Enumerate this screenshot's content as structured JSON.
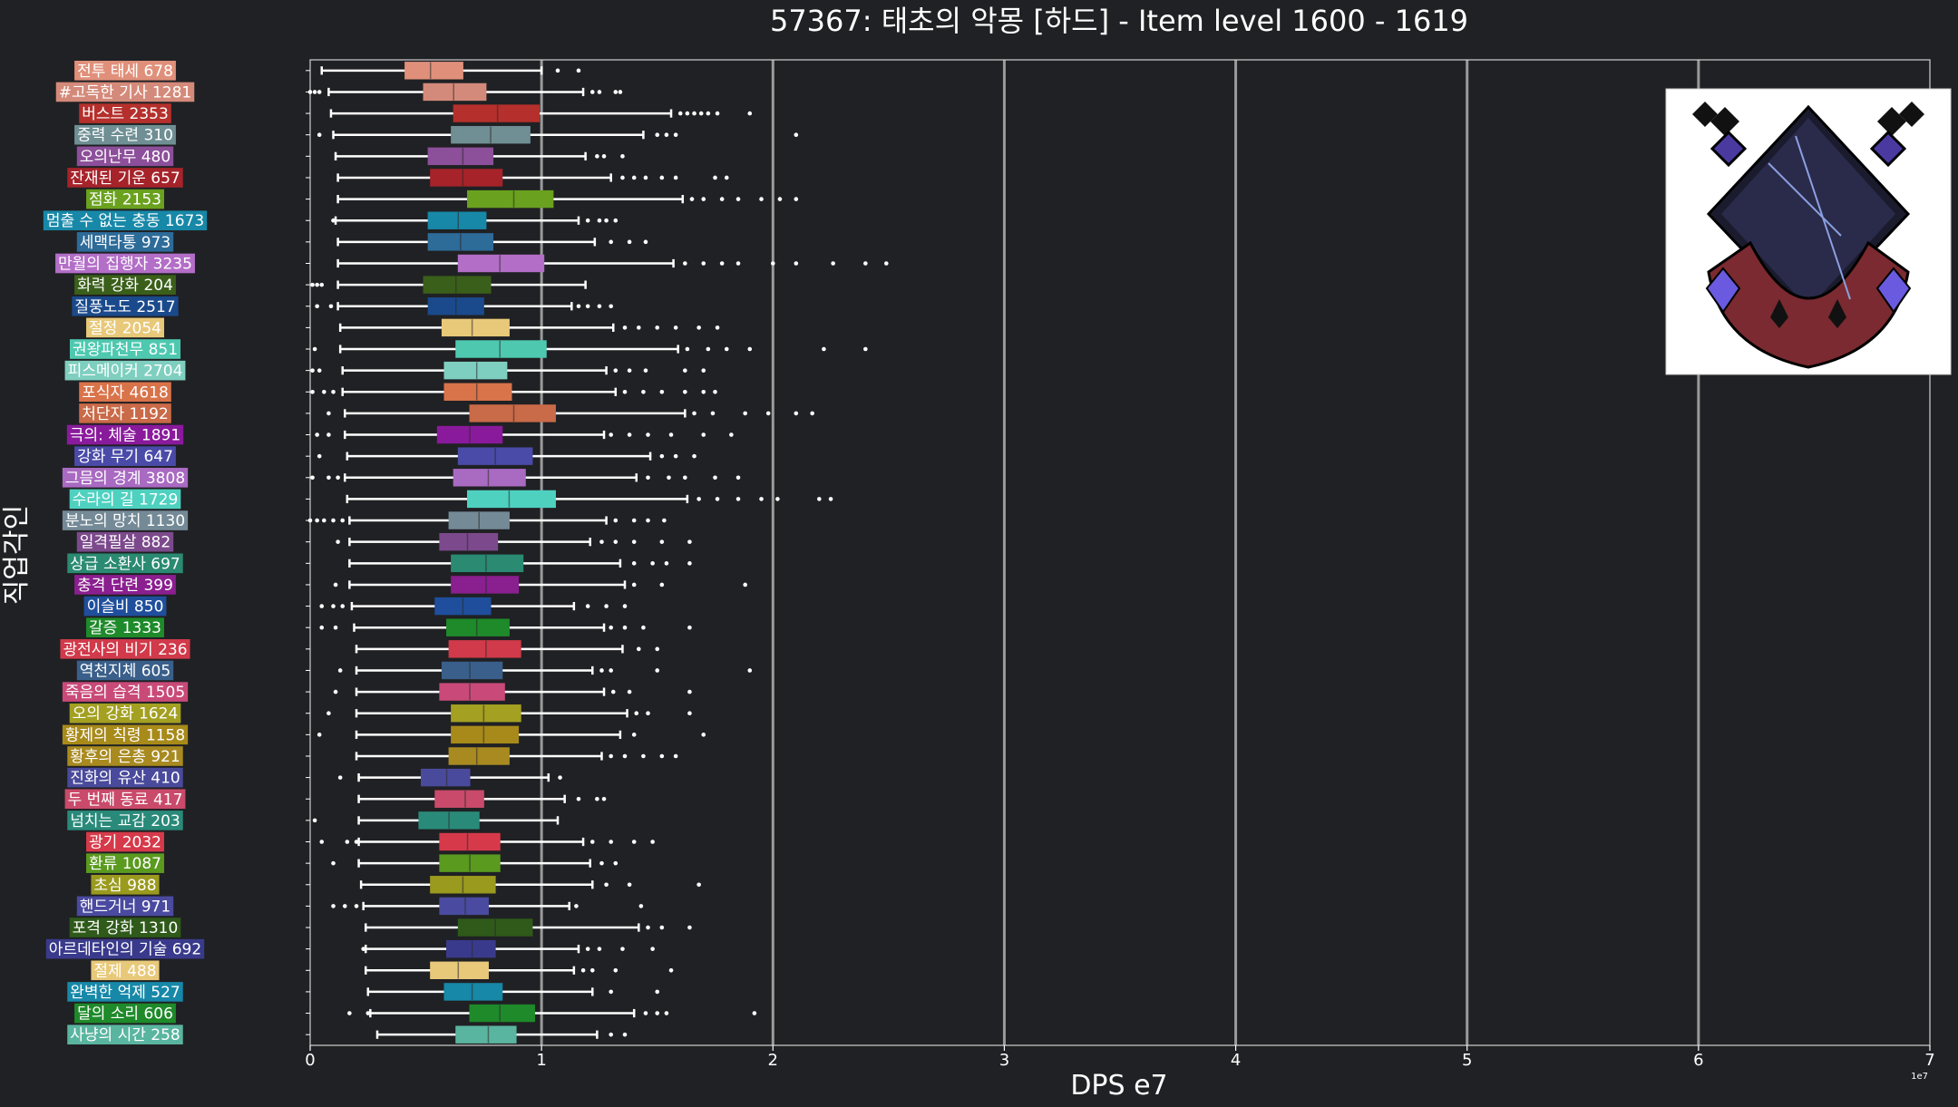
{
  "chart_data": {
    "type": "box",
    "title": "57367: 태초의 악몽 [하드] - Item level 1600 - 1619",
    "xlabel": "DPS e7",
    "ylabel": "직업각인",
    "x_offset_label": "1e7",
    "xlim": [
      0,
      7
    ],
    "xticks": [
      "0",
      "1",
      "2",
      "3",
      "4",
      "5",
      "6",
      "7"
    ],
    "grid": "vertical lines at major x ticks",
    "categories": [
      {
        "label": "전투 태세 678",
        "color": "#e0907a",
        "whisker_low": 0.05,
        "q1": 0.41,
        "median": 0.52,
        "q3": 0.66,
        "whisker_high": 1.0,
        "outliers": [
          1.07,
          1.16
        ]
      },
      {
        "label": "#고독한 기사 1281",
        "color": "#d48a7a",
        "whisker_low": 0.08,
        "q1": 0.49,
        "median": 0.62,
        "q3": 0.76,
        "whisker_high": 1.18,
        "outliers": [
          0.0,
          0.02,
          0.04,
          1.22,
          1.25,
          1.32,
          1.34
        ]
      },
      {
        "label": "버스트 2353",
        "color": "#b5302c",
        "whisker_low": 0.09,
        "q1": 0.62,
        "median": 0.81,
        "q3": 0.99,
        "whisker_high": 1.56,
        "outliers": [
          1.6,
          1.63,
          1.66,
          1.69,
          1.72,
          1.76,
          1.9
        ]
      },
      {
        "label": "중력 수련 310",
        "color": "#6f8f94",
        "whisker_low": 0.1,
        "q1": 0.61,
        "median": 0.78,
        "q3": 0.95,
        "whisker_high": 1.44,
        "outliers": [
          0.04,
          1.5,
          1.54,
          1.58,
          2.1
        ]
      },
      {
        "label": "오의난무 480",
        "color": "#8c4f9a",
        "whisker_low": 0.11,
        "q1": 0.51,
        "median": 0.66,
        "q3": 0.79,
        "whisker_high": 1.19,
        "outliers": [
          1.24,
          1.27,
          1.35
        ]
      },
      {
        "label": "잔재된 기운 657",
        "color": "#a6232a",
        "whisker_low": 0.12,
        "q1": 0.52,
        "median": 0.66,
        "q3": 0.83,
        "whisker_high": 1.3,
        "outliers": [
          1.35,
          1.4,
          1.45,
          1.52,
          1.58,
          1.75,
          1.8
        ]
      },
      {
        "label": "점화 2153",
        "color": "#6aa11f",
        "whisker_low": 0.12,
        "q1": 0.68,
        "median": 0.88,
        "q3": 1.05,
        "whisker_high": 1.61,
        "outliers": [
          1.65,
          1.7,
          1.78,
          1.85,
          1.95,
          2.03,
          2.1
        ]
      },
      {
        "label": "멈출 수 없는 충동 1673",
        "color": "#1788a8",
        "whisker_low": 0.11,
        "q1": 0.51,
        "median": 0.64,
        "q3": 0.76,
        "whisker_high": 1.16,
        "outliers": [
          0.1,
          1.2,
          1.25,
          1.28,
          1.32
        ]
      },
      {
        "label": "세맥타통 973",
        "color": "#2d6b99",
        "whisker_low": 0.12,
        "q1": 0.51,
        "median": 0.65,
        "q3": 0.79,
        "whisker_high": 1.23,
        "outliers": [
          1.3,
          1.38,
          1.45
        ]
      },
      {
        "label": "만월의 집행자 3235",
        "color": "#b36ec7",
        "whisker_low": 0.12,
        "q1": 0.64,
        "median": 0.82,
        "q3": 1.01,
        "whisker_high": 1.57,
        "outliers": [
          1.62,
          1.7,
          1.78,
          1.85,
          2.0,
          2.1,
          2.26,
          2.4,
          2.49
        ]
      },
      {
        "label": "화력 강화 204",
        "color": "#3a5f1a",
        "whisker_low": 0.12,
        "q1": 0.49,
        "median": 0.63,
        "q3": 0.78,
        "whisker_high": 1.19,
        "outliers": [
          0.01,
          0.03,
          0.05
        ]
      },
      {
        "label": "질풍노도 2517",
        "color": "#1a4a8c",
        "whisker_low": 0.12,
        "q1": 0.51,
        "median": 0.63,
        "q3": 0.75,
        "whisker_high": 1.13,
        "outliers": [
          0.03,
          0.09,
          1.16,
          1.2,
          1.25,
          1.3
        ]
      },
      {
        "label": "절정 2054",
        "color": "#e8c97a",
        "whisker_low": 0.13,
        "q1": 0.57,
        "median": 0.7,
        "q3": 0.86,
        "whisker_high": 1.31,
        "outliers": [
          1.36,
          1.42,
          1.5,
          1.58,
          1.68,
          1.76
        ]
      },
      {
        "label": "권왕파천무 851",
        "color": "#4ec9b0",
        "whisker_low": 0.13,
        "q1": 0.63,
        "median": 0.82,
        "q3": 1.02,
        "whisker_high": 1.59,
        "outliers": [
          0.02,
          1.63,
          1.72,
          1.8,
          1.9,
          2.22,
          2.4
        ]
      },
      {
        "label": "피스메이커 2704",
        "color": "#7fcfc0",
        "whisker_low": 0.14,
        "q1": 0.58,
        "median": 0.72,
        "q3": 0.85,
        "whisker_high": 1.28,
        "outliers": [
          0.01,
          0.04,
          1.32,
          1.38,
          1.45,
          1.62,
          1.7
        ]
      },
      {
        "label": "포식자 4618",
        "color": "#d9734a",
        "whisker_low": 0.14,
        "q1": 0.58,
        "median": 0.72,
        "q3": 0.87,
        "whisker_high": 1.32,
        "outliers": [
          0.01,
          0.06,
          0.1,
          1.36,
          1.44,
          1.52,
          1.62,
          1.7,
          1.75
        ]
      },
      {
        "label": "처단자 1192",
        "color": "#c96a48",
        "whisker_low": 0.15,
        "q1": 0.69,
        "median": 0.88,
        "q3": 1.06,
        "whisker_high": 1.62,
        "outliers": [
          0.08,
          1.66,
          1.74,
          1.88,
          1.98,
          2.1,
          2.17
        ]
      },
      {
        "label": "극의: 체술 1891",
        "color": "#8a1a9c",
        "whisker_low": 0.15,
        "q1": 0.55,
        "median": 0.69,
        "q3": 0.83,
        "whisker_high": 1.27,
        "outliers": [
          0.03,
          0.08,
          1.3,
          1.38,
          1.46,
          1.56,
          1.7,
          1.82
        ]
      },
      {
        "label": "강화 무기 647",
        "color": "#4a4aa8",
        "whisker_low": 0.16,
        "q1": 0.64,
        "median": 0.8,
        "q3": 0.96,
        "whisker_high": 1.47,
        "outliers": [
          0.04,
          1.52,
          1.58,
          1.66
        ]
      },
      {
        "label": "그믐의 경계 3808",
        "color": "#a96ac2",
        "whisker_low": 0.15,
        "q1": 0.62,
        "median": 0.77,
        "q3": 0.93,
        "whisker_high": 1.41,
        "outliers": [
          0.01,
          0.08,
          0.12,
          1.46,
          1.55,
          1.62,
          1.75,
          1.85
        ]
      },
      {
        "label": "수라의 길 1729",
        "color": "#4fd1c0",
        "whisker_low": 0.16,
        "q1": 0.68,
        "median": 0.86,
        "q3": 1.06,
        "whisker_high": 1.63,
        "outliers": [
          1.68,
          1.76,
          1.85,
          1.95,
          2.02,
          2.2,
          2.25
        ]
      },
      {
        "label": "분노의 망치 1130",
        "color": "#748a96",
        "whisker_low": 0.17,
        "q1": 0.6,
        "median": 0.73,
        "q3": 0.86,
        "whisker_high": 1.28,
        "outliers": [
          0.0,
          0.03,
          0.06,
          0.1,
          0.14,
          1.32,
          1.4,
          1.46,
          1.53
        ]
      },
      {
        "label": "일격필살 882",
        "color": "#7c4a8c",
        "whisker_low": 0.17,
        "q1": 0.56,
        "median": 0.68,
        "q3": 0.81,
        "whisker_high": 1.21,
        "outliers": [
          0.12,
          1.26,
          1.32,
          1.4,
          1.52,
          1.64
        ]
      },
      {
        "label": "상급 소환사 697",
        "color": "#2a8a72",
        "whisker_low": 0.17,
        "q1": 0.61,
        "median": 0.76,
        "q3": 0.92,
        "whisker_high": 1.34,
        "outliers": [
          1.4,
          1.48,
          1.54,
          1.64
        ]
      },
      {
        "label": "충격 단련 399",
        "color": "#8a1f8f",
        "whisker_low": 0.17,
        "q1": 0.61,
        "median": 0.76,
        "q3": 0.9,
        "whisker_high": 1.36,
        "outliers": [
          0.11,
          1.4,
          1.52,
          1.88
        ]
      },
      {
        "label": "이슬비 850",
        "color": "#1f4f9c",
        "whisker_low": 0.18,
        "q1": 0.54,
        "median": 0.66,
        "q3": 0.78,
        "whisker_high": 1.14,
        "outliers": [
          0.05,
          0.1,
          0.14,
          1.2,
          1.28,
          1.36
        ]
      },
      {
        "label": "갈증 1333",
        "color": "#1e8a2a",
        "whisker_low": 0.19,
        "q1": 0.59,
        "median": 0.72,
        "q3": 0.86,
        "whisker_high": 1.27,
        "outliers": [
          0.05,
          0.11,
          1.3,
          1.36,
          1.44,
          1.64
        ]
      },
      {
        "label": "광전사의 비기 236",
        "color": "#d13a4a",
        "whisker_low": 0.2,
        "q1": 0.6,
        "median": 0.76,
        "q3": 0.91,
        "whisker_high": 1.35,
        "outliers": [
          1.42,
          1.5
        ]
      },
      {
        "label": "역천지체 605",
        "color": "#3a5f8a",
        "whisker_low": 0.2,
        "q1": 0.57,
        "median": 0.69,
        "q3": 0.83,
        "whisker_high": 1.22,
        "outliers": [
          0.13,
          1.26,
          1.3,
          1.5,
          1.9
        ]
      },
      {
        "label": "죽음의 습격 1505",
        "color": "#c94a78",
        "whisker_low": 0.2,
        "q1": 0.56,
        "median": 0.69,
        "q3": 0.84,
        "whisker_high": 1.27,
        "outliers": [
          0.11,
          1.31,
          1.38,
          1.64
        ]
      },
      {
        "label": "오의 강화 1624",
        "color": "#a3a022",
        "whisker_low": 0.2,
        "q1": 0.61,
        "median": 0.75,
        "q3": 0.91,
        "whisker_high": 1.37,
        "outliers": [
          0.08,
          1.41,
          1.46,
          1.64
        ]
      },
      {
        "label": "황제의 칙령 1158",
        "color": "#a88a1a",
        "whisker_low": 0.2,
        "q1": 0.61,
        "median": 0.75,
        "q3": 0.9,
        "whisker_high": 1.34,
        "outliers": [
          0.04,
          1.4,
          1.7
        ]
      },
      {
        "label": "황후의 은총 921",
        "color": "#a88a20",
        "whisker_low": 0.2,
        "q1": 0.6,
        "median": 0.72,
        "q3": 0.86,
        "whisker_high": 1.26,
        "outliers": [
          1.3,
          1.36,
          1.44,
          1.52,
          1.58
        ]
      },
      {
        "label": "진화의 유산 410",
        "color": "#4a4a9c",
        "whisker_low": 0.21,
        "q1": 0.48,
        "median": 0.59,
        "q3": 0.69,
        "whisker_high": 1.03,
        "outliers": [
          0.13,
          1.08
        ]
      },
      {
        "label": "두 번째 동료 417",
        "color": "#c94a6a",
        "whisker_low": 0.21,
        "q1": 0.54,
        "median": 0.67,
        "q3": 0.75,
        "whisker_high": 1.1,
        "outliers": [
          1.16,
          1.24,
          1.27
        ]
      },
      {
        "label": "넘치는 교감 203",
        "color": "#2a8a7a",
        "whisker_low": 0.21,
        "q1": 0.47,
        "median": 0.6,
        "q3": 0.73,
        "whisker_high": 1.07,
        "outliers": [
          0.02
        ]
      },
      {
        "label": "광기 2032",
        "color": "#d63a4a",
        "whisker_low": 0.21,
        "q1": 0.56,
        "median": 0.68,
        "q3": 0.82,
        "whisker_high": 1.18,
        "outliers": [
          0.05,
          0.16,
          0.2,
          1.22,
          1.3,
          1.4,
          1.48
        ]
      },
      {
        "label": "환류 1087",
        "color": "#5a9a1f",
        "whisker_low": 0.21,
        "q1": 0.56,
        "median": 0.69,
        "q3": 0.82,
        "whisker_high": 1.21,
        "outliers": [
          0.1,
          1.26,
          1.32
        ]
      },
      {
        "label": "초심 988",
        "color": "#9a9a1f",
        "whisker_low": 0.22,
        "q1": 0.52,
        "median": 0.66,
        "q3": 0.8,
        "whisker_high": 1.22,
        "outliers": [
          1.28,
          1.38,
          1.68
        ]
      },
      {
        "label": "핸드거너 971",
        "color": "#4a4aa0",
        "whisker_low": 0.23,
        "q1": 0.56,
        "median": 0.67,
        "q3": 0.77,
        "whisker_high": 1.12,
        "outliers": [
          0.1,
          0.15,
          0.2,
          1.15,
          1.43
        ]
      },
      {
        "label": "포격 강화 1310",
        "color": "#2f5a1a",
        "whisker_low": 0.24,
        "q1": 0.64,
        "median": 0.8,
        "q3": 0.96,
        "whisker_high": 1.42,
        "outliers": [
          1.46,
          1.52,
          1.64
        ]
      },
      {
        "label": "아르데타인의 기술 692",
        "color": "#3a3a8c",
        "whisker_low": 0.24,
        "q1": 0.59,
        "median": 0.7,
        "q3": 0.8,
        "whisker_high": 1.16,
        "outliers": [
          0.23,
          1.2,
          1.25,
          1.35,
          1.48
        ]
      },
      {
        "label": "절제 488",
        "color": "#e8c97a",
        "whisker_low": 0.24,
        "q1": 0.52,
        "median": 0.64,
        "q3": 0.77,
        "whisker_high": 1.14,
        "outliers": [
          1.18,
          1.22,
          1.32,
          1.56
        ]
      },
      {
        "label": "완벽한 억제 527",
        "color": "#1788a8",
        "whisker_low": 0.25,
        "q1": 0.58,
        "median": 0.7,
        "q3": 0.83,
        "whisker_high": 1.22,
        "outliers": [
          1.3,
          1.5
        ]
      },
      {
        "label": "달의 소리 606",
        "color": "#1e8a2a",
        "whisker_low": 0.26,
        "q1": 0.69,
        "median": 0.82,
        "q3": 0.97,
        "whisker_high": 1.4,
        "outliers": [
          0.17,
          0.25,
          1.45,
          1.5,
          1.54,
          1.92
        ]
      },
      {
        "label": "사냥의 시간 258",
        "color": "#5ab5a0",
        "whisker_low": 0.29,
        "q1": 0.63,
        "median": 0.77,
        "q3": 0.89,
        "whisker_high": 1.24,
        "outliers": [
          1.3,
          1.36
        ]
      }
    ]
  }
}
